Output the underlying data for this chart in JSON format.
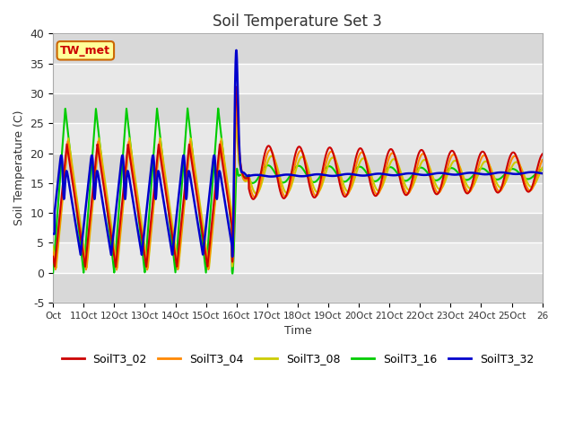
{
  "title": "Soil Temperature Set 3",
  "xlabel": "Time",
  "ylabel": "Soil Temperature (C)",
  "ylim": [
    -5,
    40
  ],
  "series": {
    "SoilT3_02": {
      "color": "#cc0000",
      "lw": 1.5
    },
    "SoilT3_04": {
      "color": "#ff8800",
      "lw": 1.5
    },
    "SoilT3_08": {
      "color": "#cccc00",
      "lw": 1.5
    },
    "SoilT3_16": {
      "color": "#00cc00",
      "lw": 1.5
    },
    "SoilT3_32": {
      "color": "#0000cc",
      "lw": 1.8
    }
  },
  "annotation_text": "TW_met",
  "annotation_color": "#cc0000",
  "annotation_bg": "#ffff99",
  "annotation_border": "#cc6600",
  "xtick_labels": [
    "Oct",
    "11Oct",
    "12Oct",
    "13Oct",
    "14Oct",
    "15Oct",
    "16Oct",
    "17Oct",
    "18Oct",
    "19Oct",
    "20Oct",
    "21Oct",
    "22Oct",
    "23Oct",
    "24Oct",
    "25Oct",
    "26"
  ],
  "ytick_values": [
    -5,
    0,
    5,
    10,
    15,
    20,
    25,
    30,
    35,
    40
  ],
  "band_colors": [
    "#d8d8d8",
    "#e8e8e8"
  ]
}
